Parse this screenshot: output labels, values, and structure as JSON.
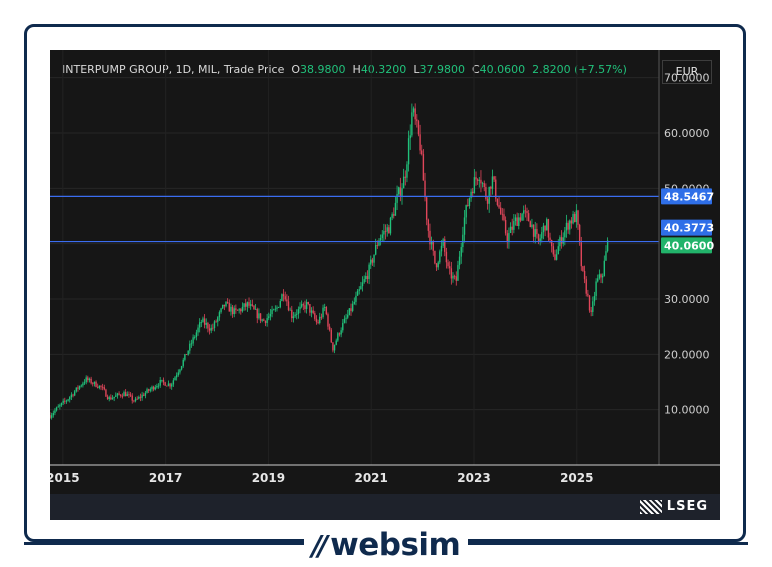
{
  "header": {
    "title": "INTERPUMP GROUP, 1D, MIL, Trade Price",
    "o_label": "O",
    "o_value": "38.9800",
    "h_label": "H",
    "h_value": "40.3200",
    "l_label": "L",
    "l_value": "37.9800",
    "c_label": "C",
    "c_value": "40.0600",
    "change": "2.8200 (+7.57%)"
  },
  "currency_label": "EUR",
  "branding": {
    "provider": "LSEG",
    "site": "websim"
  },
  "colors": {
    "up": "#21c17b",
    "down": "#e0465a",
    "line": "#3b6df0",
    "background": "#161616"
  },
  "chart_data": {
    "type": "candlestick",
    "y_axis_side": "right",
    "ylim": [
      0,
      75
    ],
    "yticks": [
      "10.0000",
      "20.0000",
      "30.0000",
      "40.0000",
      "50.0000",
      "60.0000",
      "70.0000"
    ],
    "xticks": [
      "2015",
      "2017",
      "2019",
      "2021",
      "2023",
      "2025"
    ],
    "xlim": [
      2014.75,
      2026.6
    ],
    "grid": true,
    "horizontal_lines": [
      {
        "value": 48.5467,
        "label": "48.5467"
      },
      {
        "value": 40.3773,
        "label": "40.3773"
      }
    ],
    "last_price_label": "40.0600",
    "last_price": 40.06,
    "price_path": [
      [
        2014.75,
        9
      ],
      [
        2015.1,
        12
      ],
      [
        2015.45,
        15.5
      ],
      [
        2015.75,
        14
      ],
      [
        2015.9,
        12
      ],
      [
        2016.2,
        13
      ],
      [
        2016.4,
        11.5
      ],
      [
        2016.6,
        13
      ],
      [
        2016.9,
        15
      ],
      [
        2017.1,
        14.5
      ],
      [
        2017.3,
        18
      ],
      [
        2017.5,
        22
      ],
      [
        2017.7,
        26
      ],
      [
        2017.9,
        24.5
      ],
      [
        2018.15,
        29
      ],
      [
        2018.35,
        27.5
      ],
      [
        2018.6,
        29
      ],
      [
        2018.9,
        26
      ],
      [
        2019.15,
        28
      ],
      [
        2019.3,
        31.5
      ],
      [
        2019.45,
        27
      ],
      [
        2019.75,
        29
      ],
      [
        2019.95,
        25.5
      ],
      [
        2020.1,
        28.5
      ],
      [
        2020.25,
        21
      ],
      [
        2020.4,
        24.5
      ],
      [
        2020.6,
        28
      ],
      [
        2020.75,
        31
      ],
      [
        2020.95,
        35
      ],
      [
        2021.15,
        41
      ],
      [
        2021.35,
        43
      ],
      [
        2021.5,
        48
      ],
      [
        2021.65,
        52
      ],
      [
        2021.8,
        64
      ],
      [
        2021.95,
        58
      ],
      [
        2022.1,
        43
      ],
      [
        2022.25,
        36
      ],
      [
        2022.4,
        40
      ],
      [
        2022.5,
        35
      ],
      [
        2022.65,
        33
      ],
      [
        2022.8,
        44
      ],
      [
        2022.95,
        50
      ],
      [
        2023.1,
        53
      ],
      [
        2023.25,
        48
      ],
      [
        2023.35,
        52
      ],
      [
        2023.5,
        46
      ],
      [
        2023.65,
        41
      ],
      [
        2023.8,
        44
      ],
      [
        2023.95,
        45.5
      ],
      [
        2024.1,
        44
      ],
      [
        2024.25,
        40
      ],
      [
        2024.4,
        44
      ],
      [
        2024.55,
        37
      ],
      [
        2024.7,
        41
      ],
      [
        2024.85,
        44
      ],
      [
        2025.0,
        45
      ],
      [
        2025.1,
        35
      ],
      [
        2025.2,
        31
      ],
      [
        2025.28,
        27
      ],
      [
        2025.38,
        33
      ],
      [
        2025.5,
        34.5
      ],
      [
        2025.6,
        40.06
      ]
    ]
  }
}
